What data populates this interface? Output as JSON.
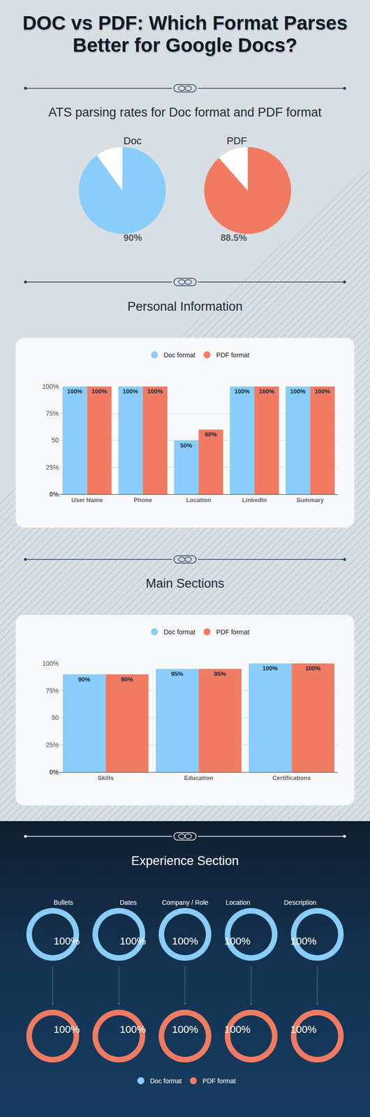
{
  "header": {
    "title": "DOC vs PDF: Which Format Parses Better for Google Docs?"
  },
  "chart_data": [
    {
      "type": "pie",
      "title": "ATS parsing rates for Doc format and PDF format",
      "ylim": [
        0,
        100
      ],
      "data_labels": true,
      "series": [
        {
          "name": "Doc",
          "color": "#88cdfb",
          "values": [
            90
          ],
          "value_labels": [
            "90%"
          ]
        },
        {
          "name": "PDF",
          "color": "#f07b62",
          "values": [
            88.5
          ],
          "value_labels": [
            "88.5%"
          ]
        }
      ]
    },
    {
      "type": "bar",
      "title": "Personal Information",
      "categories": [
        "User Name",
        "Phone",
        "Location",
        "LinkedIn",
        "Summary"
      ],
      "series": [
        {
          "name": "Doc format",
          "color": "#88cdfb",
          "values": [
            100,
            100,
            50,
            100,
            100
          ],
          "value_labels": [
            "100%",
            "100%",
            "50%",
            "100%",
            "100%"
          ]
        },
        {
          "name": "PDF format",
          "color": "#f07b62",
          "values": [
            100,
            100,
            60,
            100,
            100
          ],
          "value_labels": [
            "100%",
            "100%",
            "60%",
            "100%",
            "100%"
          ]
        }
      ],
      "ylim": [
        0,
        100
      ],
      "yticks": [
        {
          "value": 0,
          "label": "0%"
        },
        {
          "value": 25,
          "label": "25%"
        },
        50,
        {
          "value": 75,
          "label": "75%"
        },
        {
          "value": 100,
          "label": "100%"
        }
      ],
      "grid": true,
      "legend": "top",
      "data_labels": true
    },
    {
      "type": "bar",
      "title": "Main Sections",
      "categories": [
        "Skills",
        "Education",
        "Certifications"
      ],
      "series": [
        {
          "name": "Doc format",
          "color": "#88cdfb",
          "values": [
            90,
            95,
            100
          ],
          "value_labels": [
            "90%",
            "95%",
            "100%"
          ]
        },
        {
          "name": "PDF format",
          "color": "#f07b62",
          "values": [
            90,
            95,
            100
          ],
          "value_labels": [
            "90%",
            "95%",
            "100%"
          ]
        }
      ],
      "ylim": [
        0,
        100
      ],
      "yticks": [
        {
          "value": 0,
          "label": "0%"
        },
        {
          "value": 25,
          "label": "25%"
        },
        50,
        {
          "value": 75,
          "label": "75%"
        },
        {
          "value": 100,
          "label": "100%"
        }
      ],
      "grid": true,
      "legend": "top",
      "data_labels": true
    },
    {
      "type": "ring",
      "title": "Experience Section",
      "categories": [
        "Bullets",
        "Dates",
        "Company / Role",
        "Location",
        "Description"
      ],
      "series": [
        {
          "name": "Doc format",
          "color": "#88cdfb",
          "values": [
            100,
            100,
            100,
            100,
            100
          ],
          "value_labels": [
            "100%",
            "100%",
            "100%",
            "100%",
            "100%"
          ]
        },
        {
          "name": "PDF format",
          "color": "#f07b62",
          "values": [
            100,
            100,
            100,
            100,
            100
          ],
          "value_labels": [
            "100%",
            "100%",
            "100%",
            "100%",
            "100%"
          ]
        }
      ],
      "ylim": [
        0,
        100
      ],
      "legend": "bottom",
      "data_labels": true
    }
  ]
}
